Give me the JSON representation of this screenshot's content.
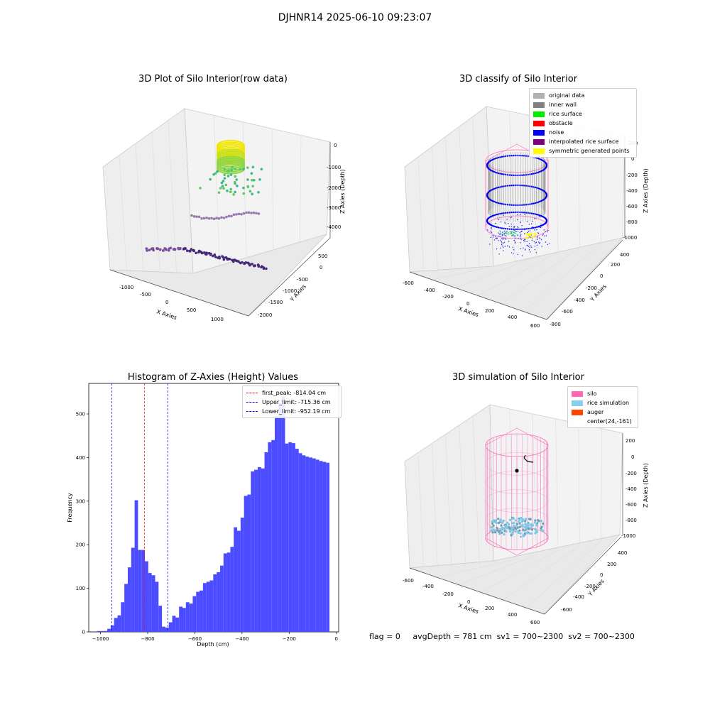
{
  "suptitle": "DJHNR14 2025-06-10 09:23:07",
  "panel1": {
    "title": "3D Plot of Silo Interior(row data)",
    "xlabel": "X Axies",
    "ylabel": "Y Axies",
    "zlabel": "Z Axies (Depth)",
    "xticks": [
      "-1000",
      "-500",
      "0",
      "500",
      "1000"
    ],
    "yticks": [
      "500",
      "0",
      "-500",
      "-1000",
      "-1500",
      "-2000"
    ],
    "zticks": [
      "0",
      "-1000",
      "-2000",
      "-3000",
      "-4000"
    ]
  },
  "panel2": {
    "title": "3D classify of Silo Interior",
    "xlabel": "X Axies",
    "ylabel": "Y Axies",
    "zlabel": "Z Axies (Depth)",
    "xticks": [
      "-600",
      "-400",
      "-200",
      "0",
      "200",
      "400",
      "600"
    ],
    "yticks": [
      "400",
      "200",
      "0",
      "-200",
      "-400",
      "-600",
      "-800"
    ],
    "zticks": [
      "200",
      "0",
      "-200",
      "-400",
      "-600",
      "-800",
      "-1000"
    ],
    "legend": [
      {
        "label": "original data",
        "color": "#b0b0b0"
      },
      {
        "label": "inner wall",
        "color": "#808080"
      },
      {
        "label": "rice surface",
        "color": "#00ee00"
      },
      {
        "label": "obstacle",
        "color": "#ff0000"
      },
      {
        "label": "noise",
        "color": "#0000ff"
      },
      {
        "label": "interpolated rice surface",
        "color": "#800080"
      },
      {
        "label": "symmetric generated points",
        "color": "#ffff00"
      }
    ]
  },
  "panel3": {
    "title": "Histogram of Z-Axies (Height) Values",
    "xlabel": "Depth (cm)",
    "ylabel": "Frequency",
    "legend": [
      {
        "label": "first_peak: -814.04 cm",
        "color": "#ff0000"
      },
      {
        "label": "Upper_limit: -715.36 cm",
        "color": "#0000ff"
      },
      {
        "label": "Lower_limit: -952.19 cm",
        "color": "#0000ff"
      }
    ]
  },
  "panel4": {
    "title": "3D simulation of Silo Interior",
    "xlabel": "X Axies",
    "ylabel": "Y Axies",
    "zlabel": "Z Axies (Depth)",
    "xticks": [
      "-600",
      "-400",
      "-200",
      "0",
      "200",
      "400",
      "600"
    ],
    "yticks": [
      "400",
      "200",
      "0",
      "-200",
      "-400",
      "-600"
    ],
    "zticks": [
      "200",
      "0",
      "-200",
      "-400",
      "-600",
      "-800",
      "-1000"
    ],
    "legend": [
      {
        "label": "silo",
        "color": "#ff69b4"
      },
      {
        "label": "rice simulation",
        "color": "#87ceeb"
      },
      {
        "label": "auger",
        "color": "#ff4500"
      },
      {
        "label": "center(24,-161)",
        "color": "none"
      }
    ]
  },
  "status": {
    "flag": "flag = 0",
    "avg_depth": "avgDepth = 781 cm",
    "sv1": "sv1 = 700~2300",
    "sv2": "sv2 = 700~2300"
  },
  "chart_data": [
    {
      "type": "scatter",
      "title": "3D Plot of Silo Interior(row data)",
      "xlabel": "X Axies",
      "ylabel": "Y Axies",
      "zlabel": "Z Axies (Depth)",
      "xlim": [
        -1300,
        1500
      ],
      "ylim": [
        -2200,
        800
      ],
      "zlim": [
        -4500,
        300
      ]
    },
    {
      "type": "scatter",
      "title": "3D classify of Silo Interior",
      "xlim": [
        -600,
        600
      ],
      "ylim": [
        -800,
        400
      ],
      "zlim": [
        -1000,
        200
      ],
      "series": [
        {
          "name": "original data"
        },
        {
          "name": "inner wall"
        },
        {
          "name": "rice surface"
        },
        {
          "name": "obstacle"
        },
        {
          "name": "noise"
        },
        {
          "name": "interpolated rice surface"
        },
        {
          "name": "symmetric generated points"
        }
      ]
    },
    {
      "type": "bar",
      "title": "Histogram of Z-Axies (Height) Values",
      "xlabel": "Depth (cm)",
      "ylabel": "Frequency",
      "xlim": [
        -1050,
        10
      ],
      "ylim": [
        0,
        570
      ],
      "xticks": [
        -1000,
        -800,
        -600,
        -400,
        -200,
        0
      ],
      "yticks": [
        0,
        100,
        200,
        300,
        400,
        500
      ],
      "bin_width": 14.5,
      "bin_starts": [
        -1015,
        -1000.5,
        -986,
        -971.5,
        -957,
        -942.5,
        -928,
        -913.5,
        -899,
        -884.5,
        -870,
        -855.5,
        -841,
        -826.5,
        -812,
        -797.5,
        -783,
        -768.5,
        -754,
        -739.5,
        -725,
        -710.5,
        -696,
        -681.5,
        -667,
        -652.5,
        -638,
        -623.5,
        -609,
        -594.5,
        -580,
        -565.5,
        -551,
        -536.5,
        -522,
        -507.5,
        -493,
        -478.5,
        -464,
        -449.5,
        -435,
        -420.5,
        -406,
        -391.5,
        -377,
        -362.5,
        -348,
        -333.5,
        -319,
        -304.5,
        -290,
        -275.5,
        -261,
        -246.5,
        -232,
        -217.5,
        -203,
        -188.5,
        -174,
        -159.5,
        -145,
        -130.5,
        -116,
        -101.5,
        -87,
        -72.5,
        -58,
        -43.5
      ],
      "values": [
        2,
        2,
        2,
        7,
        15,
        32,
        38,
        68,
        110,
        148,
        193,
        302,
        188,
        188,
        162,
        135,
        130,
        115,
        60,
        12,
        10,
        22,
        37,
        33,
        58,
        55,
        68,
        65,
        82,
        92,
        95,
        112,
        115,
        118,
        132,
        137,
        152,
        180,
        182,
        195,
        240,
        232,
        262,
        312,
        315,
        368,
        372,
        378,
        375,
        412,
        435,
        440,
        495,
        525,
        540,
        432,
        435,
        433,
        420,
        410,
        405,
        402,
        400,
        398,
        395,
        392,
        390,
        388
      ],
      "vlines": [
        {
          "label": "first_peak: -814.04 cm",
          "x": -814.04,
          "color": "#ff0000"
        },
        {
          "label": "Upper_limit: -715.36 cm",
          "x": -715.36,
          "color": "#0000ff"
        },
        {
          "label": "Lower_limit: -952.19 cm",
          "x": -952.19,
          "color": "#0000ff"
        }
      ],
      "bar_color": "#4b4bff"
    },
    {
      "type": "scatter",
      "title": "3D simulation of Silo Interior",
      "xlim": [
        -600,
        600
      ],
      "ylim": [
        -600,
        400
      ],
      "zlim": [
        -1000,
        200
      ],
      "series": [
        {
          "name": "silo"
        },
        {
          "name": "rice simulation"
        },
        {
          "name": "auger"
        },
        {
          "name": "center(24,-161)"
        }
      ]
    }
  ]
}
